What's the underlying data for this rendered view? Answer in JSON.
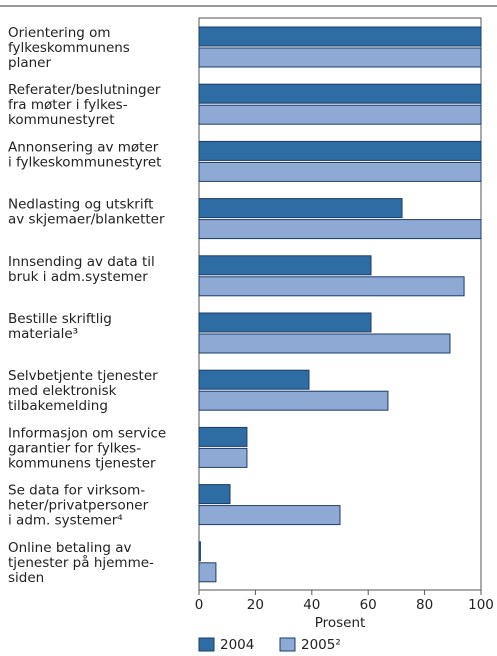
{
  "chart_data": {
    "type": "bar",
    "orientation": "horizontal",
    "categories": [
      [
        "Orientering om",
        "fylkeskommunens",
        "planer"
      ],
      [
        "Referater/beslutninger",
        "fra møter i fylkes-",
        "kommunestyret"
      ],
      [
        "Annonsering av møter",
        "i fylkeskommunestyret"
      ],
      [
        "Nedlasting og utskrift",
        "av skjemaer/blanketter"
      ],
      [
        "Innsending av data til",
        "bruk i adm.systemer"
      ],
      [
        "Bestille skriftlig",
        "materiale³"
      ],
      [
        "Selvbetjente tjenester",
        "med elektronisk",
        "tilbakemelding"
      ],
      [
        "Informasjon om service",
        "garantier for fylkes-",
        "kommunens tjenester"
      ],
      [
        "Se data for virksom-",
        "heter/privatpersoner",
        "i adm. systemer⁴"
      ],
      [
        "Online betaling av",
        "tjenester på hjemme-",
        "siden"
      ]
    ],
    "series": [
      {
        "name": "2004",
        "color": "#2e6da4",
        "values": [
          100,
          100,
          100,
          72,
          61,
          61,
          39,
          17,
          11,
          0.5
        ]
      },
      {
        "name": "2005²",
        "color": "#8fa9d5",
        "values": [
          100,
          100,
          100,
          100,
          94,
          89,
          67,
          17,
          50,
          6
        ]
      }
    ],
    "xlabel": "Prosent",
    "xlim": [
      0,
      100
    ],
    "xticks": [
      0,
      20,
      40,
      60,
      80,
      100
    ],
    "grid": false,
    "legend": "bottom"
  }
}
